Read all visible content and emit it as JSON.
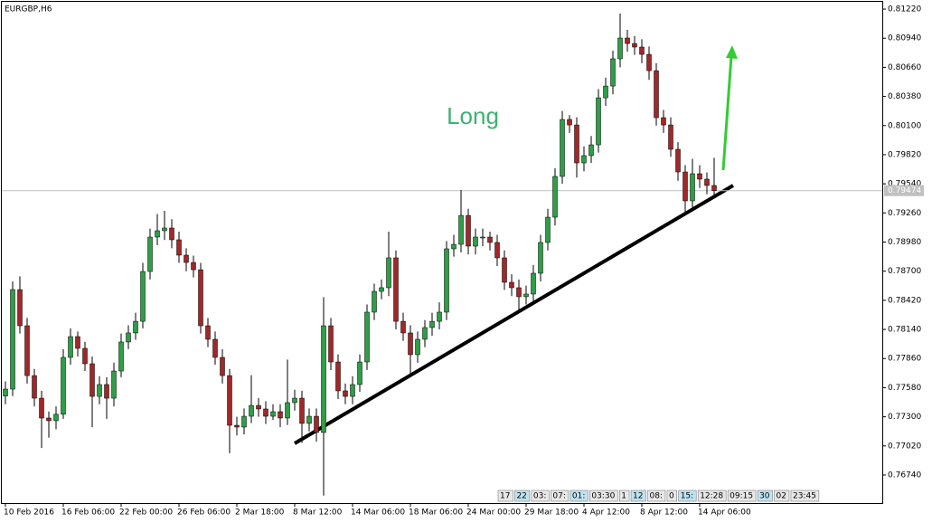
{
  "chart_data": {
    "type": "candlestick",
    "title": "EURGBP,H6",
    "annotation": "Long",
    "up_color": "#2e9e47",
    "down_color": "#a02828",
    "ylim": [
      0.7647,
      0.8129
    ],
    "yticks": [
      {
        "value": 0.8122,
        "label": "0.81220"
      },
      {
        "value": 0.8094,
        "label": "0.80940"
      },
      {
        "value": 0.8066,
        "label": "0.80660"
      },
      {
        "value": 0.8038,
        "label": "0.80380"
      },
      {
        "value": 0.801,
        "label": "0.80100"
      },
      {
        "value": 0.7982,
        "label": "0.79820"
      },
      {
        "value": 0.7954,
        "label": "0.79540"
      },
      {
        "value": 0.7926,
        "label": "0.79260"
      },
      {
        "value": 0.7898,
        "label": "0.78980"
      },
      {
        "value": 0.787,
        "label": "0.78700"
      },
      {
        "value": 0.7842,
        "label": "0.78420"
      },
      {
        "value": 0.7814,
        "label": "0.78140"
      },
      {
        "value": 0.7786,
        "label": "0.77860"
      },
      {
        "value": 0.7758,
        "label": "0.77580"
      },
      {
        "value": 0.773,
        "label": "0.77300"
      },
      {
        "value": 0.7702,
        "label": "0.77020"
      },
      {
        "value": 0.7674,
        "label": "0.76740"
      }
    ],
    "current_price": 0.79474,
    "x_labels": [
      "10 Feb 2016",
      "16 Feb 06:00",
      "22 Feb 00:00",
      "26 Feb 06:00",
      "2 Mar 18:00",
      "8 Mar 12:00",
      "14 Mar 06:00",
      "18 Mar 06:00",
      "24 Mar 00:00",
      "29 Mar 18:00",
      "4 Apr 12:00",
      "8 Apr 12:00",
      "14 Apr 06:00"
    ],
    "toolbar": [
      "17",
      "22",
      "03:",
      "07:",
      "01:",
      "03:30",
      "1",
      "12",
      "08:",
      "0",
      "15:",
      "12:28",
      "09:15",
      "30",
      "02",
      "23:45"
    ],
    "ohlc": [
      [
        0.775,
        0.7764,
        0.7742,
        0.77566
      ],
      [
        0.77566,
        0.786,
        0.775,
        0.78523
      ],
      [
        0.78523,
        0.7865,
        0.781,
        0.78175
      ],
      [
        0.78175,
        0.7825,
        0.7762,
        0.77696
      ],
      [
        0.77696,
        0.7776,
        0.774,
        0.77479
      ],
      [
        0.77479,
        0.7755,
        0.77,
        0.77288
      ],
      [
        0.77288,
        0.7735,
        0.771,
        0.77262
      ],
      [
        0.77262,
        0.774,
        0.7718,
        0.77324
      ],
      [
        0.77324,
        0.7795,
        0.7728,
        0.77871
      ],
      [
        0.77871,
        0.7815,
        0.778,
        0.78071
      ],
      [
        0.78071,
        0.7812,
        0.7788,
        0.77958
      ],
      [
        0.77958,
        0.7802,
        0.7774,
        0.7781
      ],
      [
        0.7781,
        0.7788,
        0.772,
        0.77496
      ],
      [
        0.77496,
        0.7769,
        0.7742,
        0.7761
      ],
      [
        0.7761,
        0.7768,
        0.7728,
        0.77479
      ],
      [
        0.77479,
        0.7782,
        0.774,
        0.7774
      ],
      [
        0.7774,
        0.781,
        0.7768,
        0.78019
      ],
      [
        0.78019,
        0.7818,
        0.7795,
        0.78106
      ],
      [
        0.78106,
        0.783,
        0.7804,
        0.78218
      ],
      [
        0.78218,
        0.7878,
        0.7815,
        0.78697
      ],
      [
        0.78697,
        0.7911,
        0.7862,
        0.79028
      ],
      [
        0.79028,
        0.7925,
        0.7895,
        0.79089
      ],
      [
        0.79089,
        0.7928,
        0.79,
        0.79115
      ],
      [
        0.79115,
        0.792,
        0.7892,
        0.79002
      ],
      [
        0.79002,
        0.7908,
        0.7878,
        0.78854
      ],
      [
        0.78854,
        0.7892,
        0.787,
        0.78784
      ],
      [
        0.78784,
        0.7885,
        0.7864,
        0.78714
      ],
      [
        0.78714,
        0.7878,
        0.781,
        0.78175
      ],
      [
        0.78175,
        0.7825,
        0.7797,
        0.78045
      ],
      [
        0.78045,
        0.7812,
        0.778,
        0.77871
      ],
      [
        0.77871,
        0.7795,
        0.7762,
        0.77696
      ],
      [
        0.77696,
        0.7776,
        0.7695,
        0.77218
      ],
      [
        0.77218,
        0.773,
        0.7712,
        0.77201
      ],
      [
        0.77201,
        0.7738,
        0.7713,
        0.77305
      ],
      [
        0.77305,
        0.777,
        0.7724,
        0.77409
      ],
      [
        0.77409,
        0.7748,
        0.773,
        0.77375
      ],
      [
        0.77375,
        0.7745,
        0.7723,
        0.77305
      ],
      [
        0.77305,
        0.7742,
        0.7727,
        0.77349
      ],
      [
        0.77349,
        0.7742,
        0.772,
        0.77288
      ],
      [
        0.77288,
        0.7785,
        0.7722,
        0.77436
      ],
      [
        0.77436,
        0.7756,
        0.7736,
        0.77479
      ],
      [
        0.77479,
        0.7755,
        0.7705,
        0.77236
      ],
      [
        0.77236,
        0.7738,
        0.7716,
        0.77305
      ],
      [
        0.77305,
        0.7738,
        0.7706,
        0.77149
      ],
      [
        0.77149,
        0.7845,
        0.76542,
        0.78175
      ],
      [
        0.78175,
        0.7825,
        0.7775,
        0.77827
      ],
      [
        0.77827,
        0.779,
        0.7747,
        0.77549
      ],
      [
        0.77549,
        0.7762,
        0.7742,
        0.77496
      ],
      [
        0.77496,
        0.7769,
        0.7742,
        0.7761
      ],
      [
        0.7761,
        0.779,
        0.7754,
        0.77827
      ],
      [
        0.77827,
        0.7838,
        0.7775,
        0.78306
      ],
      [
        0.78306,
        0.7858,
        0.7823,
        0.78506
      ],
      [
        0.78506,
        0.7862,
        0.7843,
        0.78541
      ],
      [
        0.78541,
        0.7908,
        0.7846,
        0.78828
      ],
      [
        0.78828,
        0.789,
        0.7814,
        0.78218
      ],
      [
        0.78218,
        0.783,
        0.7803,
        0.78106
      ],
      [
        0.78106,
        0.7818,
        0.777,
        0.77897
      ],
      [
        0.77897,
        0.7812,
        0.7782,
        0.78045
      ],
      [
        0.78045,
        0.7823,
        0.7797,
        0.78158
      ],
      [
        0.78158,
        0.783,
        0.7808,
        0.78218
      ],
      [
        0.78218,
        0.784,
        0.7814,
        0.78306
      ],
      [
        0.78306,
        0.7899,
        0.7823,
        0.78915
      ],
      [
        0.78915,
        0.7905,
        0.7884,
        0.78958
      ],
      [
        0.78958,
        0.7948,
        0.7888,
        0.79236
      ],
      [
        0.79236,
        0.793,
        0.7886,
        0.78941
      ],
      [
        0.78941,
        0.7911,
        0.7886,
        0.79028
      ],
      [
        0.79028,
        0.7911,
        0.7894,
        0.79028
      ],
      [
        0.79028,
        0.7908,
        0.789,
        0.78976
      ],
      [
        0.78976,
        0.7905,
        0.7875,
        0.78828
      ],
      [
        0.78828,
        0.789,
        0.7852,
        0.78593
      ],
      [
        0.78593,
        0.7867,
        0.7846,
        0.78541
      ],
      [
        0.78541,
        0.7862,
        0.783,
        0.78454
      ],
      [
        0.78454,
        0.7856,
        0.7838,
        0.7848
      ],
      [
        0.7848,
        0.7876,
        0.784,
        0.7868
      ],
      [
        0.7868,
        0.7905,
        0.786,
        0.78976
      ],
      [
        0.78976,
        0.793,
        0.789,
        0.79219
      ],
      [
        0.79219,
        0.7969,
        0.7914,
        0.79611
      ],
      [
        0.79611,
        0.8024,
        0.7954,
        0.80159
      ],
      [
        0.80159,
        0.802,
        0.8003,
        0.80106
      ],
      [
        0.80106,
        0.8018,
        0.796,
        0.79741
      ],
      [
        0.79741,
        0.799,
        0.7966,
        0.79811
      ],
      [
        0.79811,
        0.8,
        0.7974,
        0.79915
      ],
      [
        0.79915,
        0.8045,
        0.7984,
        0.80367
      ],
      [
        0.80367,
        0.8056,
        0.8029,
        0.8048
      ],
      [
        0.8048,
        0.8082,
        0.804,
        0.80742
      ],
      [
        0.80742,
        0.81177,
        0.8066,
        0.80942
      ],
      [
        0.80942,
        0.8102,
        0.8081,
        0.80889
      ],
      [
        0.80889,
        0.8096,
        0.8078,
        0.80855
      ],
      [
        0.80855,
        0.8093,
        0.807,
        0.80785
      ],
      [
        0.80785,
        0.8086,
        0.8054,
        0.80628
      ],
      [
        0.80628,
        0.807,
        0.801,
        0.80176
      ],
      [
        0.80176,
        0.8025,
        0.8003,
        0.80106
      ],
      [
        0.80106,
        0.8018,
        0.798,
        0.79872
      ],
      [
        0.79872,
        0.7994,
        0.7957,
        0.79654
      ],
      [
        0.79654,
        0.7972,
        0.7927,
        0.79376
      ],
      [
        0.79376,
        0.7978,
        0.793,
        0.79637
      ],
      [
        0.79637,
        0.7972,
        0.795,
        0.79585
      ],
      [
        0.79585,
        0.7965,
        0.7944,
        0.79524
      ],
      [
        0.79524,
        0.7979,
        0.794,
        0.79474
      ]
    ]
  }
}
